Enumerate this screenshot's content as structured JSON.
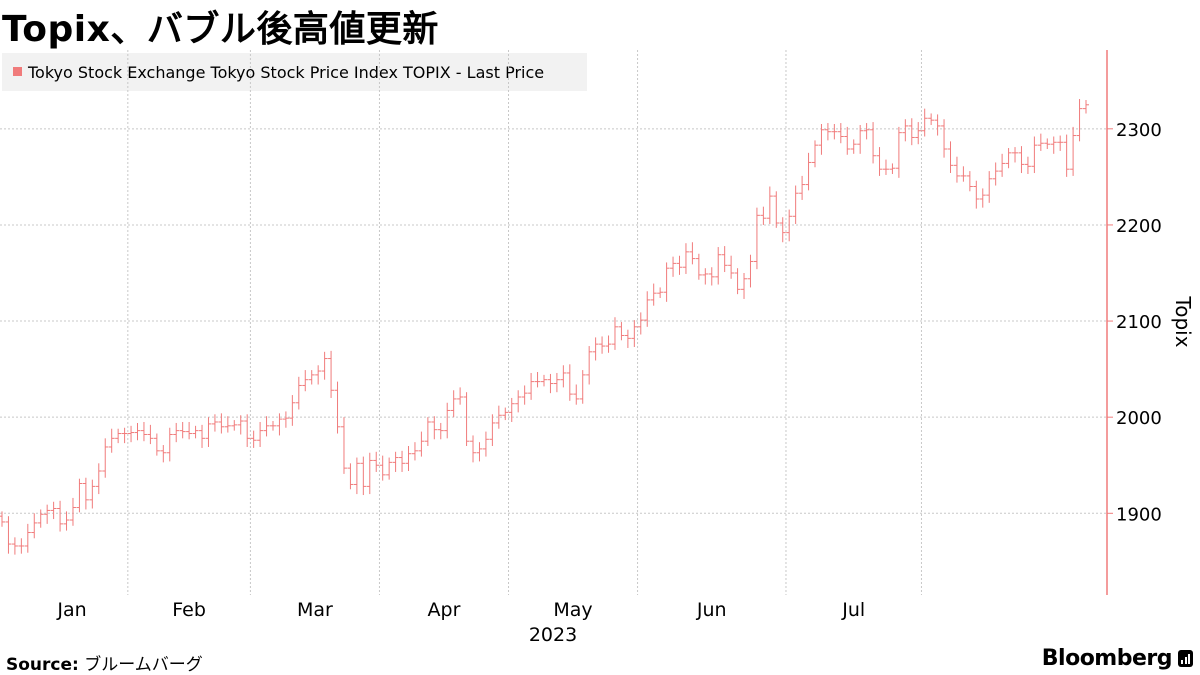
{
  "header": {
    "title": "Topix、バブル後高値更新"
  },
  "legend": {
    "label": "Tokyo Stock Exchange Tokyo Stock Price Index TOPIX - Last Price",
    "color": "#f07b7b"
  },
  "footer": {
    "source_label": "Source:",
    "source_value": "ブルームバーグ",
    "brand": "Bloomberg"
  },
  "chart_data": {
    "type": "ohlc",
    "title": "Topix、バブル後高値更新",
    "ylabel": "Topix",
    "xlabel": "2023",
    "year": "2023",
    "months": [
      "Jan",
      "Feb",
      "Mar",
      "Apr",
      "May",
      "Jun",
      "Jul"
    ],
    "ylim": [
      1815,
      2382
    ],
    "yticks": [
      1900,
      2000,
      2100,
      2200,
      2300
    ],
    "grid": true,
    "legend_position": "top-left",
    "series_color": "#f07b7b",
    "series": [
      {
        "name": "Tokyo Stock Exchange Tokyo Stock Price Index TOPIX - Last Price",
        "close": [
          1891,
          1868,
          1866,
          1866,
          1880,
          1890,
          1899,
          1903,
          1905,
          1889,
          1893,
          1906,
          1931,
          1914,
          1928,
          1944,
          1969,
          1978,
          1983,
          1983,
          1984,
          1986,
          1982,
          1978,
          1965,
          1963,
          1982,
          1986,
          1985,
          1983,
          1986,
          1978,
          1993,
          1995,
          1990,
          1991,
          1992,
          1996,
          1978,
          1976,
          1986,
          1991,
          1991,
          1998,
          1999,
          2015,
          2033,
          2039,
          2044,
          2048,
          2061,
          2028,
          1990,
          1947,
          1930,
          1952,
          1928,
          1955,
          1950,
          1940,
          1953,
          1958,
          1952,
          1962,
          1965,
          1975,
          1995,
          1987,
          1986,
          2007,
          2019,
          2021,
          1975,
          1963,
          1967,
          1977,
          1994,
          2002,
          2005,
          2014,
          2021,
          2025,
          2037,
          2037,
          2039,
          2035,
          2039,
          2046,
          2024,
          2019,
          2044,
          2068,
          2076,
          2074,
          2076,
          2094,
          2085,
          2082,
          2094,
          2101,
          2122,
          2129,
          2130,
          2155,
          2160,
          2156,
          2172,
          2165,
          2148,
          2149,
          2146,
          2169,
          2158,
          2150,
          2133,
          2144,
          2162,
          2210,
          2207,
          2230,
          2202,
          2192,
          2209,
          2233,
          2242,
          2265,
          2283,
          2299,
          2297,
          2297,
          2292,
          2279,
          2284,
          2298,
          2299,
          2272,
          2258,
          2258,
          2259,
          2296,
          2303,
          2291,
          2298,
          2311,
          2309,
          2303,
          2279,
          2262,
          2251,
          2251,
          2240,
          2227,
          2231,
          2248,
          2256,
          2264,
          2275,
          2275,
          2263,
          2261,
          2283,
          2285,
          2284,
          2286,
          2286,
          2258,
          2293,
          2321,
          2325
        ]
      }
    ]
  }
}
